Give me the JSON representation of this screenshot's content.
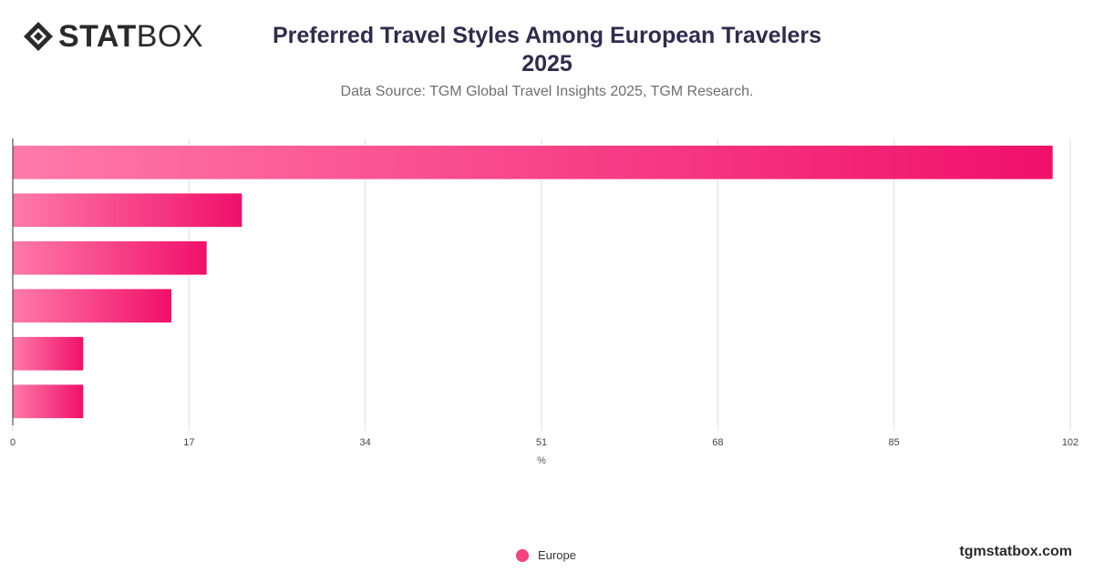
{
  "brand": {
    "logo_bold": "STAT",
    "logo_light": "BOX",
    "site": "tgmstatbox.com"
  },
  "header": {
    "title_line1": "Preferred Travel Styles Among European Travelers",
    "title_line2": "2025",
    "subtitle": "Data Source: TGM Global Travel Insights 2025, TGM Research."
  },
  "colors": {
    "bar_start": "#ff7aa8",
    "bar_end": "#f0106a",
    "grid": "#dedede",
    "axis": "#333333"
  },
  "chart_data": {
    "type": "bar",
    "orientation": "horizontal",
    "title": "Preferred Travel Styles Among European Travelers 2025",
    "subtitle": "Data Source: TGM Global Travel Insights 2025, TGM Research.",
    "xlabel": "%",
    "ylabel": "",
    "xlim": [
      0,
      102
    ],
    "xticks": [
      0,
      17,
      34,
      51,
      68,
      85,
      102
    ],
    "grid": true,
    "legend_position": "bottom",
    "categories": [
      "",
      "",
      "",
      "",
      "",
      ""
    ],
    "series": [
      {
        "name": "Europe",
        "values": [
          100.3,
          22.1,
          18.7,
          15.3,
          6.8,
          6.8
        ]
      }
    ]
  },
  "legend": {
    "label": "Europe"
  }
}
